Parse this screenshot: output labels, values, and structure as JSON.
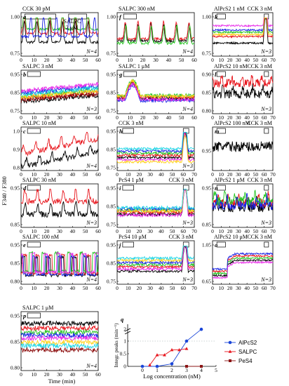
{
  "figure": {
    "y_axis_label": "F340 / F380",
    "x_axis_label": "Time (min)",
    "legend_colors": {
      "traces": [
        "#000000",
        "#e8161d",
        "#22c41f",
        "#1a24e6",
        "#e826e8",
        "#ffd21a",
        "#1ed6e6",
        "#8b0a0a"
      ],
      "AlPcS2": "#1a45d8",
      "SALPC": "#e8161d",
      "PeS4": "#8b1414"
    }
  },
  "chart_data": [
    {
      "panel": "a",
      "type": "line",
      "labels": [
        "CCK 30 pM",
        "SALPC",
        "2 μM"
      ],
      "n": "N=4",
      "ylim": [
        0.75,
        1.0
      ],
      "yticks": [
        "0.75",
        "1.00"
      ],
      "xlim": [
        0,
        60
      ],
      "xticks": [
        "0",
        "10",
        "20",
        "30",
        "40",
        "50",
        "60"
      ],
      "bars": [
        [
          3,
          27
        ],
        [
          37,
          51
        ]
      ]
    },
    {
      "panel": "b",
      "type": "line",
      "labels": [
        "SALPC 3 nM"
      ],
      "n": "N=3",
      "ylim": [
        0.75,
        0.95
      ],
      "yticks": [
        "0.75",
        "0.85",
        "0.95"
      ],
      "xlim": [
        0,
        60
      ],
      "xticks": [
        "0",
        "10",
        "20",
        "30",
        "40",
        "50",
        "60"
      ],
      "bars": [
        [
          5,
          15
        ]
      ]
    },
    {
      "panel": "c",
      "type": "line",
      "labels": [
        "SALPC 10 nM"
      ],
      "n": "N=4",
      "ylim": [
        0.8,
        1.0
      ],
      "yticks": [
        "0.8",
        "0.9",
        "1.0"
      ],
      "xlim": [
        0,
        60
      ],
      "xticks": [
        "0",
        "10",
        "20",
        "30",
        "40",
        "50",
        "60"
      ],
      "bars": [
        [
          5,
          15
        ]
      ]
    },
    {
      "panel": "d",
      "type": "line",
      "labels": [
        "SALPC 30 nM"
      ],
      "n": "N=3",
      "ylim": [
        0.85,
        0.95
      ],
      "yticks": [
        "0.85",
        "0.95"
      ],
      "xlim": [
        0,
        60
      ],
      "xticks": [
        "0",
        "10",
        "20",
        "30",
        "40",
        "50",
        "60"
      ],
      "bars": [
        [
          5,
          15
        ]
      ]
    },
    {
      "panel": "e",
      "type": "line",
      "labels": [
        "SALPC 100 nM"
      ],
      "n": "N=4",
      "ylim": [
        0.8,
        0.95
      ],
      "yticks": [
        "0.80",
        "0.85",
        "0.95"
      ],
      "xlim": [
        0,
        60
      ],
      "xticks": [
        "0",
        "10",
        "20",
        "30",
        "40",
        "50",
        "60"
      ],
      "bars": [
        [
          5,
          15
        ]
      ]
    },
    {
      "panel": "f",
      "type": "line",
      "labels": [
        "SALPC 300 nM"
      ],
      "n": "N=4",
      "ylim": [
        0.75,
        1.0
      ],
      "yticks": [
        "0.75",
        "1.00"
      ],
      "xlim": [
        0,
        60
      ],
      "xticks": [
        "0",
        "10",
        "20",
        "30",
        "40",
        "50",
        "60"
      ],
      "bars": [
        [
          5,
          15
        ]
      ]
    },
    {
      "panel": "g",
      "type": "line",
      "labels": [
        "SALPC 1 μM"
      ],
      "n": "N=4",
      "ylim": [
        0.75,
        0.95
      ],
      "yticks": [
        "0.75",
        "0.85",
        "0.95"
      ],
      "xlim": [
        0,
        60
      ],
      "xticks": [
        "0",
        "10",
        "20",
        "30",
        "40",
        "50",
        "60"
      ],
      "bars": [
        [
          5,
          15
        ]
      ]
    },
    {
      "panel": "h",
      "type": "line",
      "labels": [
        "CCK 3 nM"
      ],
      "n": "N=3",
      "ylim": [
        0.75,
        0.95
      ],
      "yticks": [
        "0.75",
        "0.85",
        "0.95"
      ],
      "xlim": [
        0,
        70
      ],
      "xticks": [
        "0",
        "10",
        "20",
        "30",
        "40",
        "50",
        "60",
        "70"
      ],
      "bars": [
        [
          5,
          15
        ],
        [
          60,
          65
        ]
      ]
    },
    {
      "panel": "i",
      "type": "line",
      "labels": [
        "PcS4 1 μM",
        "CCK 3 nM"
      ],
      "n": "N=3",
      "ylim": [
        0.75,
        0.95
      ],
      "yticks": [
        "0.75",
        "0.85",
        "0.95"
      ],
      "xlim": [
        0,
        70
      ],
      "xticks": [
        "0",
        "10",
        "20",
        "30",
        "40",
        "50",
        "60",
        "70"
      ],
      "bars": [
        [
          5,
          15
        ],
        [
          60,
          65
        ]
      ]
    },
    {
      "panel": "j",
      "type": "line",
      "labels": [
        "PcS4 10 μM",
        "CCK 3 nM"
      ],
      "n": "N=3",
      "ylim": [
        0.75,
        0.95
      ],
      "yticks": [
        "0.75",
        "0.85",
        "0.95"
      ],
      "xlim": [
        0,
        70
      ],
      "xticks": [
        "0",
        "10",
        "20",
        "30",
        "40",
        "50",
        "60",
        "70"
      ],
      "bars": [
        [
          5,
          15
        ],
        [
          60,
          65
        ]
      ]
    },
    {
      "panel": "k",
      "type": "line",
      "labels": [
        "AlPcS2 1 nM",
        "CCK 3 nM"
      ],
      "n": "N=3",
      "ylim": [
        0.75,
        1.0
      ],
      "yticks": [
        "0.75",
        "1.00"
      ],
      "xlim": [
        0,
        70
      ],
      "xticks": [
        "0",
        "10",
        "20",
        "30",
        "40",
        "50",
        "60",
        "70"
      ],
      "bars": [
        [
          5,
          15
        ],
        [
          60,
          65
        ]
      ]
    },
    {
      "panel": "l",
      "type": "line",
      "labels": [
        "AlPcS2 10 nM",
        "CCK 3 nM"
      ],
      "n": "N=3",
      "ylim": [
        0.8,
        0.9
      ],
      "yticks": [
        "0.80",
        "0.85",
        "0.90"
      ],
      "xlim": [
        0,
        70
      ],
      "xticks": [
        "0",
        "10",
        "20",
        "30",
        "40",
        "50",
        "60",
        "70"
      ],
      "bars": [
        [
          5,
          15
        ],
        [
          60,
          65
        ]
      ]
    },
    {
      "panel": "m",
      "type": "line",
      "labels": [
        "AlPcS2 100 nM",
        "CCK 3 nM"
      ],
      "n": "",
      "ylim": [
        0.95,
        1.0
      ],
      "yticks": [
        "0.95"
      ],
      "xlim": [
        0,
        70
      ],
      "xticks": [
        "0",
        "10",
        "20",
        "30",
        "40",
        "50",
        "60",
        "70"
      ],
      "bars": [
        [
          5,
          15
        ],
        [
          60,
          65
        ]
      ]
    },
    {
      "panel": "n",
      "type": "line",
      "labels": [
        "AlPcS2 1 μM",
        "CCK 3 nM"
      ],
      "n": "N=3",
      "ylim": [
        0.85,
        0.95
      ],
      "yticks": [
        "0.85",
        "0.95"
      ],
      "xlim": [
        0,
        70
      ],
      "xticks": [
        "0",
        "10",
        "20",
        "30",
        "40",
        "50",
        "60",
        "70"
      ],
      "bars": [
        [
          5,
          15
        ],
        [
          60,
          65
        ]
      ]
    },
    {
      "panel": "o",
      "type": "line",
      "labels": [
        "AlPcS2 10 μM",
        "CCK 3 nM"
      ],
      "n": "N=3",
      "ylim": [
        0.65,
        1.05
      ],
      "yticks": [
        "0.65",
        "1.05"
      ],
      "xlim": [
        0,
        70
      ],
      "xticks": [
        "0",
        "10",
        "20",
        "30",
        "40",
        "50",
        "60",
        "70"
      ],
      "bars": [
        [
          5,
          15
        ],
        [
          60,
          65
        ]
      ]
    },
    {
      "panel": "p",
      "type": "line",
      "labels": [
        "SALPC 1 μM"
      ],
      "n": "N=4",
      "ylim": [
        0.8,
        0.95
      ],
      "yticks": [
        "0.80",
        "0.85",
        "0.95"
      ],
      "xlim": [
        0,
        60
      ],
      "xticks": [
        "0",
        "10",
        "20",
        "30",
        "40",
        "50",
        "60"
      ],
      "bars": [
        [
          5,
          15
        ]
      ]
    },
    {
      "panel": "q",
      "type": "line",
      "title": "",
      "xlabel": "Log concentration (nM)",
      "ylabel": "Integr. peaks (min⁻¹)",
      "xlim": [
        -1,
        5
      ],
      "ylim": [
        0,
        1.5
      ],
      "xticks": [
        "0",
        "1",
        "2",
        "3",
        "4",
        "5"
      ],
      "yticks": [
        "0",
        "0.5",
        "1",
        "2"
      ],
      "series": [
        {
          "name": "AlPcS2",
          "color": "#1a45d8",
          "marker": "circle",
          "x": [
            0,
            1,
            2,
            3,
            4
          ],
          "y": [
            0,
            0,
            0.1,
            1.0,
            2.0
          ]
        },
        {
          "name": "SALPC",
          "color": "#e8161d",
          "marker": "triangle",
          "x": [
            0.5,
            1.0,
            1.5,
            2.0,
            2.5,
            3.0
          ],
          "y": [
            0.05,
            0.45,
            0.45,
            0.65,
            0.65,
            0.7
          ]
        },
        {
          "name": "PeS4",
          "color": "#8b1414",
          "marker": "square",
          "x": [
            3,
            4
          ],
          "y": [
            0,
            0
          ]
        }
      ]
    }
  ]
}
